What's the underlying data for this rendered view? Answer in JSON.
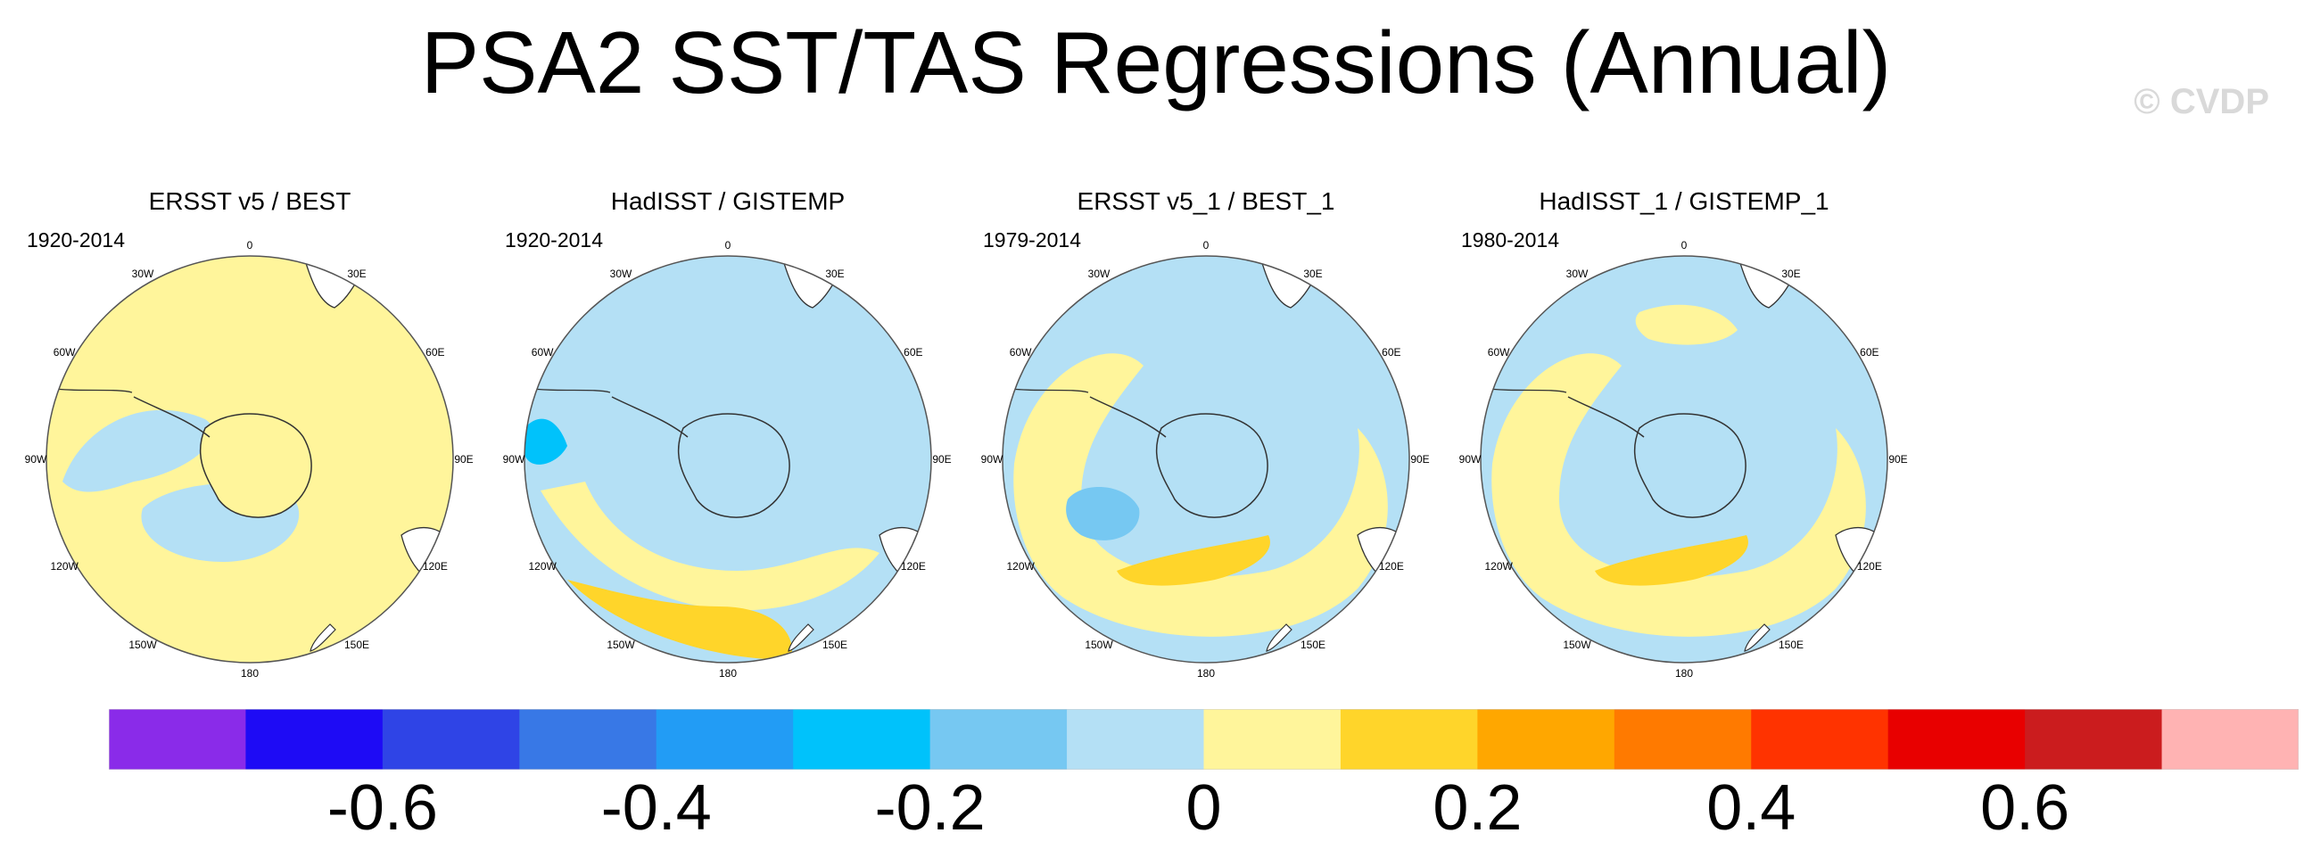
{
  "title": "PSA2 SST/TAS Regressions (Annual)",
  "watermark": "© CVDP",
  "panels": [
    {
      "title": "ERSST v5 / BEST",
      "years": "1920-2014",
      "fill": "#fff59b",
      "patches": [
        {
          "kind": "blue",
          "shape": "arc-west"
        },
        {
          "kind": "blue",
          "shape": "center"
        }
      ]
    },
    {
      "title": "HadISST / GISTEMP",
      "years": "1920-2014",
      "fill": "#b4e0f5",
      "patches": [
        {
          "kind": "yellow",
          "shape": "band-south"
        },
        {
          "kind": "gold",
          "shape": "south-gold"
        },
        {
          "kind": "deep",
          "shape": "west-deep"
        }
      ]
    },
    {
      "title": "ERSST v5_1 / BEST_1",
      "years": "1979-2014",
      "fill": "#b4e0f5",
      "patches": [
        {
          "kind": "yellow",
          "shape": "ring"
        },
        {
          "kind": "gold",
          "shape": "south-gold-small"
        },
        {
          "kind": "mid",
          "shape": "west-mid"
        }
      ]
    },
    {
      "title": "HadISST_1 / GISTEMP_1",
      "years": "1980-2014",
      "fill": "#b4e0f5",
      "patches": [
        {
          "kind": "yellow",
          "shape": "ring"
        },
        {
          "kind": "gold",
          "shape": "south-gold-small"
        },
        {
          "kind": "yellow",
          "shape": "north"
        }
      ]
    }
  ],
  "map_labels": [
    "0",
    "30E",
    "60E",
    "90E",
    "120E",
    "150E",
    "180",
    "150W",
    "120W",
    "90W",
    "60W",
    "30W"
  ],
  "colorbar": {
    "colors": [
      "#8a2be9",
      "#1e0bf5",
      "#2f44e6",
      "#3878e6",
      "#229cf5",
      "#00c2fb",
      "#76c8f2",
      "#b4e0f5",
      "#fff59b",
      "#ffd52a",
      "#ffa700",
      "#ff7a00",
      "#ff3300",
      "#e80000",
      "#cb1c1e",
      "#ffb3b3"
    ],
    "tick_labels": [
      "-0.6",
      "-0.4",
      "-0.2",
      "0",
      "0.2",
      "0.4",
      "0.6"
    ],
    "tick_values": [
      -0.6,
      -0.4,
      -0.2,
      0,
      0.2,
      0.4,
      0.6
    ],
    "range": [
      -0.8,
      0.8
    ]
  }
}
